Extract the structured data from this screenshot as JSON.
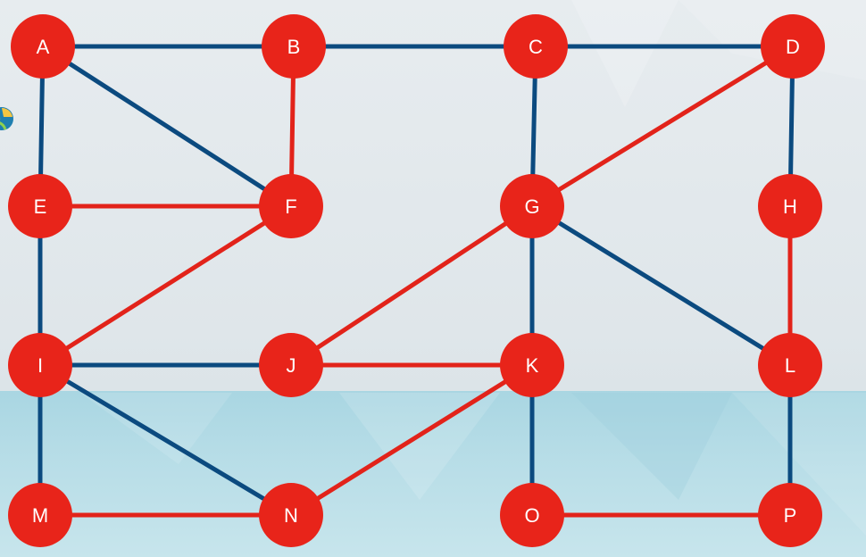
{
  "colors": {
    "blue_edge": "#0b4a7f",
    "red_edge": "#e2231a",
    "node_fill": "#e8241a",
    "label": "#ffffff"
  },
  "nodes": [
    {
      "id": "A",
      "label": "A"
    },
    {
      "id": "B",
      "label": "B"
    },
    {
      "id": "C",
      "label": "C"
    },
    {
      "id": "D",
      "label": "D"
    },
    {
      "id": "E",
      "label": "E"
    },
    {
      "id": "F",
      "label": "F"
    },
    {
      "id": "G",
      "label": "G"
    },
    {
      "id": "H",
      "label": "H"
    },
    {
      "id": "I",
      "label": "I"
    },
    {
      "id": "J",
      "label": "J"
    },
    {
      "id": "K",
      "label": "K"
    },
    {
      "id": "L",
      "label": "L"
    },
    {
      "id": "M",
      "label": "M"
    },
    {
      "id": "N",
      "label": "N"
    },
    {
      "id": "O",
      "label": "O"
    },
    {
      "id": "P",
      "label": "P"
    }
  ],
  "edges": [
    {
      "from": "A",
      "to": "B",
      "color": "blue"
    },
    {
      "from": "B",
      "to": "C",
      "color": "blue"
    },
    {
      "from": "C",
      "to": "D",
      "color": "blue"
    },
    {
      "from": "A",
      "to": "E",
      "color": "blue"
    },
    {
      "from": "A",
      "to": "F",
      "color": "blue"
    },
    {
      "from": "B",
      "to": "F",
      "color": "red"
    },
    {
      "from": "C",
      "to": "G",
      "color": "blue"
    },
    {
      "from": "D",
      "to": "G",
      "color": "red"
    },
    {
      "from": "D",
      "to": "H",
      "color": "blue"
    },
    {
      "from": "E",
      "to": "F",
      "color": "red"
    },
    {
      "from": "E",
      "to": "I",
      "color": "blue"
    },
    {
      "from": "F",
      "to": "I",
      "color": "red"
    },
    {
      "from": "G",
      "to": "J",
      "color": "red"
    },
    {
      "from": "G",
      "to": "K",
      "color": "blue"
    },
    {
      "from": "G",
      "to": "L",
      "color": "blue"
    },
    {
      "from": "H",
      "to": "L",
      "color": "red"
    },
    {
      "from": "I",
      "to": "J",
      "color": "blue"
    },
    {
      "from": "I",
      "to": "M",
      "color": "blue"
    },
    {
      "from": "I",
      "to": "N",
      "color": "blue"
    },
    {
      "from": "J",
      "to": "K",
      "color": "red"
    },
    {
      "from": "K",
      "to": "N",
      "color": "red"
    },
    {
      "from": "K",
      "to": "O",
      "color": "blue"
    },
    {
      "from": "L",
      "to": "P",
      "color": "blue"
    },
    {
      "from": "M",
      "to": "N",
      "color": "red"
    },
    {
      "from": "O",
      "to": "P",
      "color": "red"
    }
  ],
  "badge_icon": "globe-icon"
}
